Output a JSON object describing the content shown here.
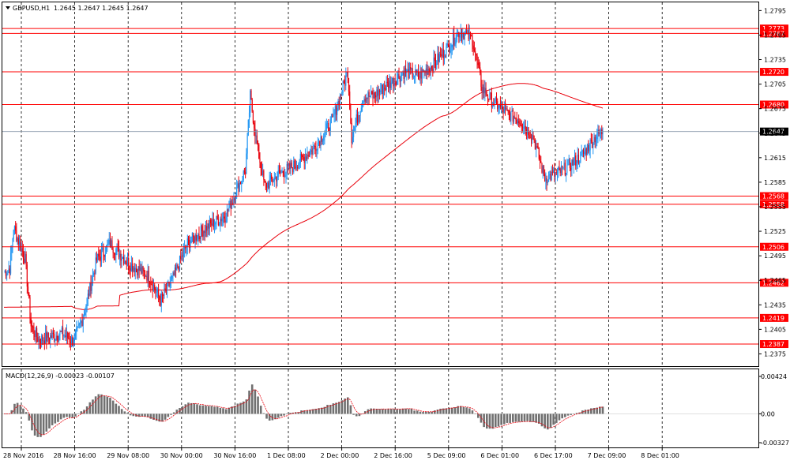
{
  "chart_data": [
    {
      "type": "candlestick",
      "title": "GBPUSD,H1",
      "ohlc_readout": "1.2645 1.2647 1.2645 1.2647",
      "ylim": [
        1.236,
        1.2805
      ],
      "y_ticks": [
        "1.2795",
        "1.2765",
        "1.2735",
        "1.2705",
        "1.2675",
        "1.2645",
        "1.2615",
        "1.2585",
        "1.2555",
        "1.2525",
        "1.2495",
        "1.2465",
        "1.2435",
        "1.2405",
        "1.2375"
      ],
      "x_ticks": [
        "28 Nov 2016",
        "28 Nov 16:00",
        "29 Nov 08:00",
        "30 Nov 00:00",
        "30 Nov 16:00",
        "1 Dec 08:00",
        "2 Dec 00:00",
        "2 Dec 16:00",
        "5 Dec 09:00",
        "6 Dec 01:00",
        "6 Dec 17:00",
        "7 Dec 09:00",
        "8 Dec 01:00"
      ],
      "current_price": {
        "value": 1.2647,
        "label": "1.2647"
      },
      "levels": [
        {
          "value": 1.2773,
          "label": "1.2773"
        },
        {
          "value": 1.2767,
          "label": "1.2767"
        },
        {
          "value": 1.272,
          "label": "1.2720"
        },
        {
          "value": 1.268,
          "label": "1.2680"
        },
        {
          "value": 1.2568,
          "label": "1.2568"
        },
        {
          "value": 1.2558,
          "label": "1.2558"
        },
        {
          "value": 1.2506,
          "label": "1.2506"
        },
        {
          "value": 1.2462,
          "label": "1.2462"
        },
        {
          "value": 1.2419,
          "label": "1.2419"
        },
        {
          "value": 1.2387,
          "label": "1.2387"
        }
      ],
      "grid": true,
      "moving_average_color": "#e8000b",
      "up_color": "#2196f3",
      "down_color": "#e8000b",
      "level_color": "#ff0000"
    },
    {
      "type": "bar",
      "title": "MACD(12,26,9) -0.00023 -0.00107",
      "ylim": [
        -0.00327,
        0.00424
      ],
      "y_ticks": [
        "0.00424",
        "0.00",
        "-0.00327"
      ],
      "bar_color": "#707070",
      "signal_color": "#e8000b"
    }
  ]
}
